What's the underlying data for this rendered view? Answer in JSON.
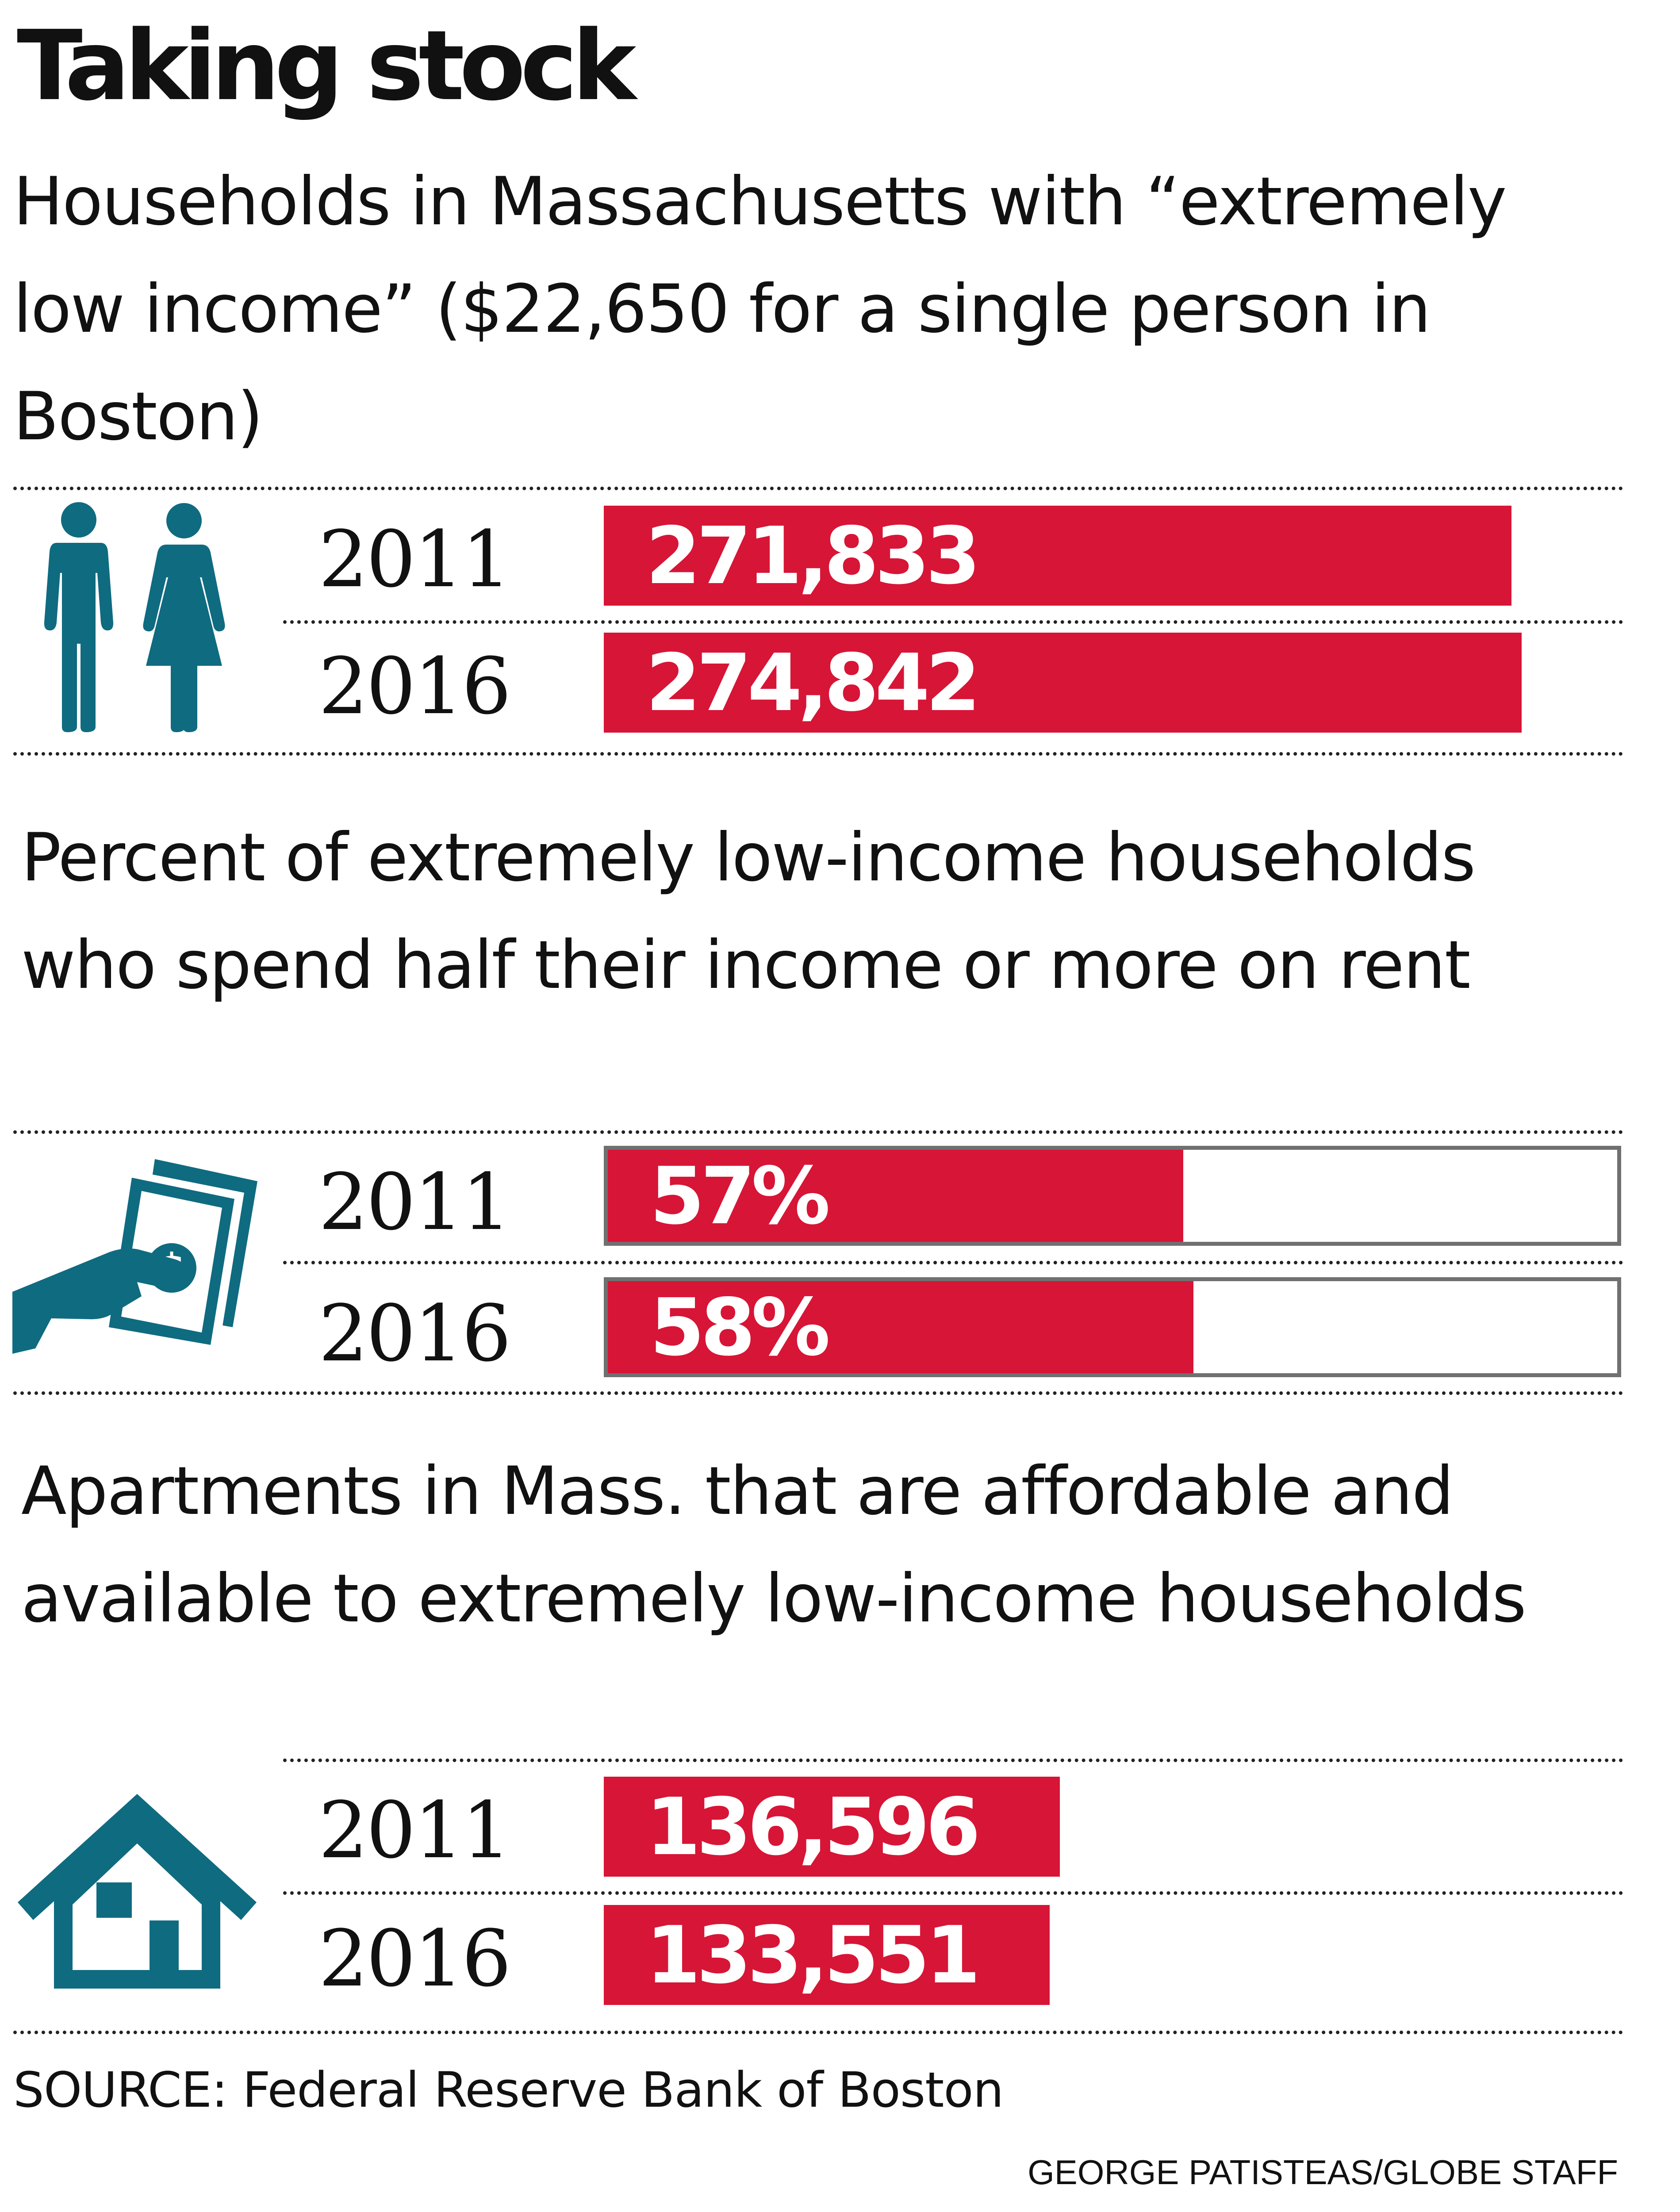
{
  "title": "Taking stock",
  "colors": {
    "bar": "#d71536",
    "icon": "#0f6b80",
    "outline": "#707070"
  },
  "chart_data": [
    {
      "type": "bar",
      "orientation": "horizontal",
      "title": "Households in Massachusetts with “extremely low income” ($22,650 for a single person in Boston)",
      "icon": "man-woman-icon",
      "categories": [
        "2011",
        "2016"
      ],
      "values": [
        271833,
        274842
      ],
      "labels": [
        "271,833",
        "274,842"
      ],
      "xlim": [
        0,
        274842
      ],
      "outlined": false
    },
    {
      "type": "bar",
      "orientation": "horizontal",
      "title": "Percent of extremely low-income households who spend half their income or more on rent",
      "icon": "hand-money-icon",
      "categories": [
        "2011",
        "2016"
      ],
      "values": [
        57,
        58
      ],
      "labels": [
        "57%",
        "58%"
      ],
      "xlim": [
        0,
        100
      ],
      "outlined": true
    },
    {
      "type": "bar",
      "orientation": "horizontal",
      "title": "Apartments in Mass. that are affordable and available to extremely low-income households",
      "icon": "house-icon",
      "categories": [
        "2011",
        "2016"
      ],
      "values": [
        136596,
        133551
      ],
      "labels": [
        "136,596",
        "133,551"
      ],
      "xlim": [
        0,
        274842
      ],
      "outlined": false
    }
  ],
  "source": "SOURCE: Federal Reserve Bank of Boston",
  "credit": "GEORGE PATISTEAS/GLOBE STAFF"
}
